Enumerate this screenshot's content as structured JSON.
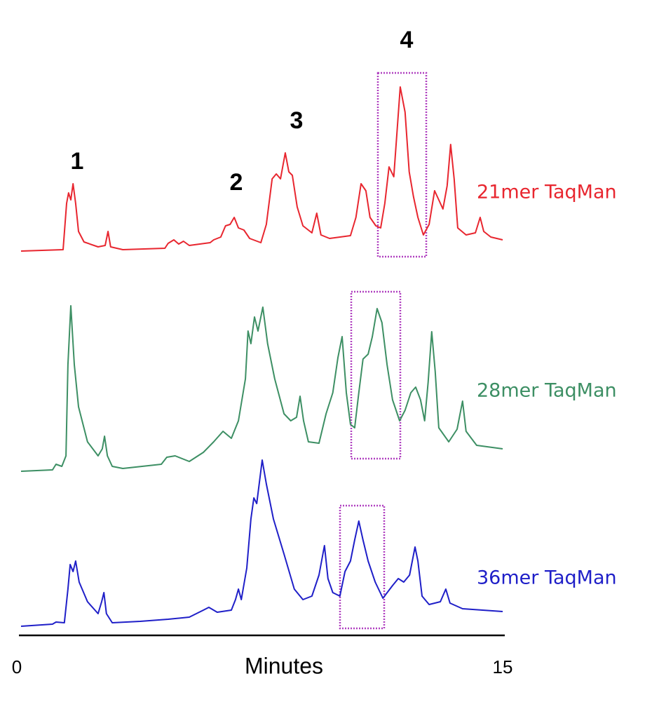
{
  "chart_data": {
    "type": "line",
    "x_label": "Minutes",
    "xlim": [
      0,
      15
    ],
    "xticks": [
      0,
      15
    ],
    "ylim": [
      0,
      250
    ],
    "annotations": [
      "1",
      "2",
      "3",
      "4"
    ],
    "series": [
      {
        "name": "21mer TaqMan",
        "color": "#e8262f",
        "x": [
          0,
          1.31,
          1.42,
          1.48,
          1.55,
          1.62,
          1.7,
          1.79,
          1.96,
          2.4,
          2.62,
          2.71,
          2.79,
          3.17,
          4.48,
          4.58,
          4.76,
          4.91,
          5.06,
          5.24,
          5.89,
          6.0,
          6.22,
          6.37,
          6.51,
          6.64,
          6.77,
          6.94,
          7.12,
          7.47,
          7.64,
          7.82,
          7.95,
          8.08,
          8.23,
          8.34,
          8.45,
          8.6,
          8.78,
          9.06,
          9.21,
          9.34,
          9.61,
          10.26,
          10.43,
          10.59,
          10.74,
          10.87,
          11.05,
          11.2,
          11.33,
          11.46,
          11.61,
          11.81,
          11.96,
          12.09,
          12.22,
          12.36,
          12.53,
          12.71,
          12.88,
          13.01,
          13.14,
          13.27,
          13.38,
          13.49,
          13.6,
          13.86,
          14.15,
          14.3,
          14.41,
          14.63,
          15.0
        ],
        "values": [
          2,
          4,
          70,
          85,
          75,
          98,
          70,
          30,
          15,
          8,
          10,
          30,
          8,
          4,
          6,
          13,
          18,
          12,
          16,
          10,
          14,
          18,
          22,
          38,
          40,
          50,
          35,
          32,
          20,
          14,
          40,
          105,
          112,
          105,
          142,
          115,
          110,
          65,
          38,
          28,
          56,
          25,
          20,
          24,
          50,
          98,
          88,
          50,
          38,
          35,
          70,
          122,
          108,
          236,
          200,
          115,
          80,
          50,
          25,
          40,
          88,
          75,
          62,
          95,
          154,
          105,
          35,
          25,
          28,
          50,
          30,
          22,
          18
        ]
      },
      {
        "name": "28mer TaqMan",
        "color": "#3d8f64",
        "x": [
          0,
          0.98,
          1.09,
          1.27,
          1.4,
          1.46,
          1.55,
          1.66,
          1.79,
          2.07,
          2.4,
          2.53,
          2.6,
          2.69,
          2.84,
          3.17,
          4.37,
          4.54,
          4.8,
          5.24,
          5.68,
          6.0,
          6.29,
          6.55,
          6.77,
          6.99,
          7.07,
          7.16,
          7.27,
          7.38,
          7.53,
          7.68,
          7.9,
          8.19,
          8.4,
          8.58,
          8.69,
          8.8,
          8.95,
          9.28,
          9.5,
          9.71,
          9.87,
          10.0,
          10.13,
          10.26,
          10.39,
          10.52,
          10.65,
          10.81,
          10.94,
          11.09,
          11.24,
          11.4,
          11.57,
          11.79,
          11.96,
          12.14,
          12.29,
          12.44,
          12.57,
          12.68,
          12.79,
          12.9,
          13.01,
          13.32,
          13.58,
          13.75,
          13.86,
          14.19,
          15.0
        ],
        "values": [
          0,
          2,
          10,
          7,
          22,
          152,
          236,
          152,
          92,
          42,
          22,
          32,
          50,
          22,
          7,
          4,
          10,
          20,
          22,
          14,
          27,
          42,
          57,
          47,
          72,
          132,
          200,
          182,
          220,
          200,
          234,
          182,
          132,
          82,
          72,
          77,
          107,
          72,
          42,
          40,
          82,
          112,
          162,
          192,
          112,
          67,
          62,
          112,
          160,
          167,
          192,
          232,
          212,
          152,
          102,
          72,
          87,
          112,
          120,
          102,
          72,
          127,
          199,
          142,
          62,
          42,
          60,
          100,
          57,
          37,
          32
        ]
      },
      {
        "name": "36mer TaqMan",
        "color": "#1f1fc8",
        "x": [
          0,
          0.98,
          1.09,
          1.35,
          1.46,
          1.53,
          1.62,
          1.7,
          1.81,
          2.07,
          2.4,
          2.51,
          2.58,
          2.66,
          2.84,
          3.71,
          4.58,
          5.24,
          5.68,
          5.85,
          6.11,
          6.55,
          6.68,
          6.77,
          6.86,
          7.03,
          7.16,
          7.25,
          7.34,
          7.51,
          7.64,
          7.86,
          8.19,
          8.51,
          8.78,
          9.06,
          9.28,
          9.45,
          9.56,
          9.71,
          9.93,
          10.09,
          10.26,
          10.39,
          10.52,
          10.65,
          10.81,
          11.03,
          11.27,
          11.57,
          11.75,
          11.92,
          12.1,
          12.27,
          12.36,
          12.49,
          12.71,
          13.06,
          13.23,
          13.36,
          13.75,
          15.0
        ],
        "values": [
          0,
          3,
          6,
          5,
          53,
          88,
          78,
          93,
          63,
          35,
          18,
          35,
          48,
          18,
          5,
          7,
          10,
          13,
          23,
          27,
          20,
          23,
          38,
          53,
          38,
          83,
          153,
          183,
          175,
          237,
          203,
          153,
          103,
          53,
          38,
          43,
          73,
          115,
          68,
          48,
          43,
          78,
          93,
          123,
          150,
          123,
          93,
          63,
          40,
          58,
          68,
          63,
          73,
          113,
          93,
          43,
          31,
          35,
          53,
          33,
          25,
          21
        ]
      }
    ]
  }
}
